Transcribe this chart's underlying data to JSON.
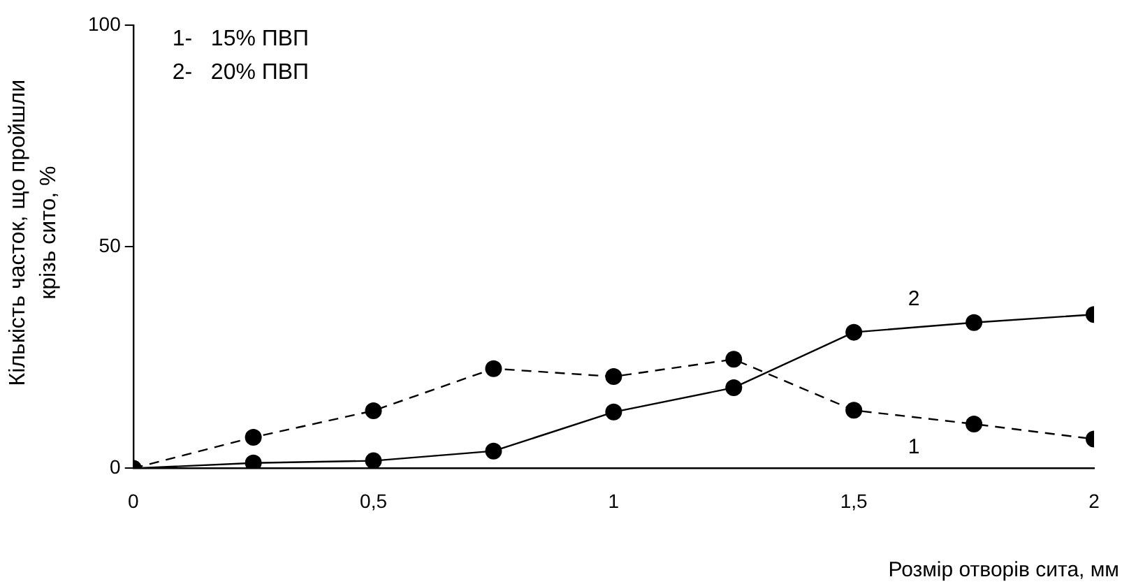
{
  "chart_data": {
    "type": "line",
    "xlabel": "Розмір отворів сита, мм",
    "ylabel": "Кількість часток, що пройшли крізь сито, %",
    "x": [
      0,
      0.25,
      0.5,
      0.75,
      1,
      1.25,
      1.5,
      1.75,
      2
    ],
    "xlim": [
      0,
      2
    ],
    "xticks": [
      0,
      {
        "value": 0.5,
        "label": "0,5"
      },
      1,
      {
        "value": 1.5,
        "label": "1,5"
      },
      2
    ],
    "ylim": [
      0,
      100
    ],
    "yticks": [
      0,
      50,
      100
    ],
    "grid": false,
    "legend": false,
    "marker": "circle",
    "annotations": [
      "1-   15% ПВП",
      "2-   20% ПВП"
    ],
    "series": [
      {
        "name": "1",
        "color": "#000000",
        "line_style": "dashed",
        "values": [
          0,
          7,
          13,
          22.5,
          20.7,
          24.6,
          13.1,
          10,
          6.6
        ]
      },
      {
        "name": "2",
        "color": "#000000",
        "line_style": "solid",
        "values": [
          0,
          1.2,
          1.7,
          3.9,
          12.7,
          18.2,
          30.7,
          32.9,
          34.7
        ]
      }
    ]
  }
}
